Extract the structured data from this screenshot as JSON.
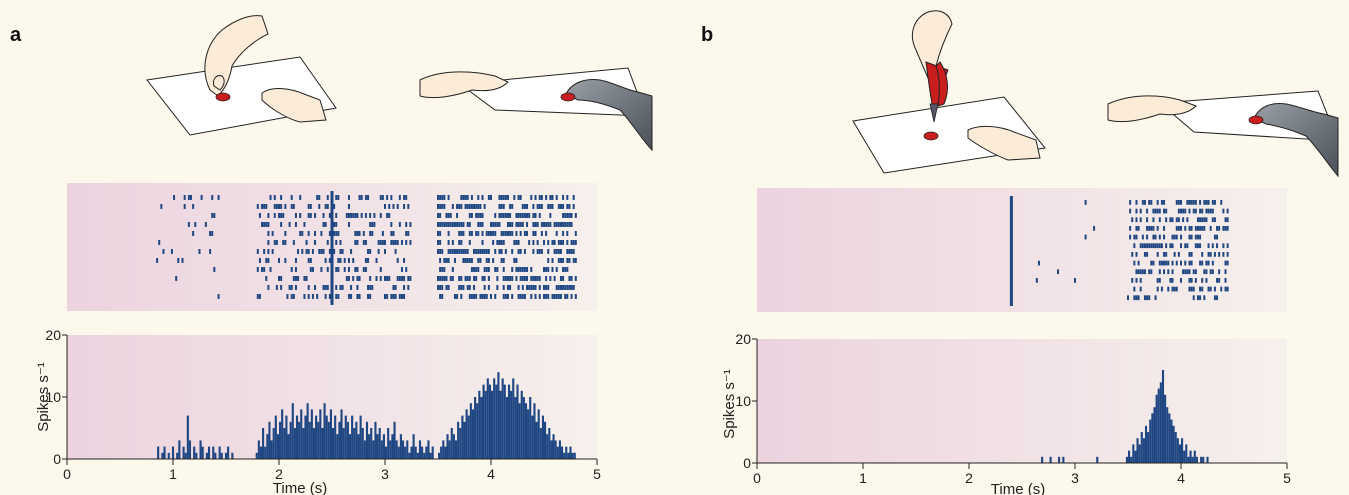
{
  "panels": [
    {
      "letter": "a"
    },
    {
      "letter": "b"
    }
  ],
  "colors": {
    "spike": "#1e4682",
    "raster_bg_left": "#ecd3df",
    "raster_bg_right": "#f6f0ec",
    "page_bg": "#fdf8ec",
    "skin": "#fcebd7",
    "red": "#c81e1e",
    "monkey": "#7a8087"
  },
  "icons": [
    "hand-placing-food-on-board-icon",
    "hand-passing-board-to-monkey-icon",
    "hand-with-pliers-icon",
    "hand-passing-board-to-monkey-icon"
  ],
  "chart_data": [
    {
      "type": "bar",
      "panel": "a",
      "xlabel": "Time (s)",
      "ylabel": "Spikes s⁻¹",
      "xlim": [
        0,
        5
      ],
      "ylim": [
        0,
        20
      ],
      "xticks": [
        "0",
        "1",
        "2",
        "3",
        "4",
        "5"
      ],
      "yticks": [
        "0",
        "10",
        "20"
      ],
      "event_marker_time": 2.5,
      "histogram": {
        "bin_width": 0.02,
        "segments": [
          {
            "start": 0.85,
            "values": [
              2,
              0,
              1,
              2,
              0,
              1,
              0,
              2,
              0,
              1,
              3,
              0,
              2,
              1,
              7,
              3,
              0,
              2,
              1,
              0,
              3,
              2,
              0,
              1,
              2,
              0,
              2,
              1,
              0,
              2,
              1,
              0,
              1,
              2,
              0,
              1
            ]
          },
          {
            "start": 1.78,
            "values": [
              1,
              3,
              2,
              5,
              2,
              4,
              6,
              3,
              5,
              7,
              4,
              6,
              8,
              5,
              7,
              4,
              6,
              9,
              5,
              7,
              6,
              8,
              5,
              7,
              9,
              6,
              8,
              5,
              7,
              6,
              8,
              5,
              9,
              7,
              6,
              8,
              5,
              7,
              4,
              6,
              8,
              5,
              7,
              6,
              4,
              7,
              5,
              6,
              4,
              7,
              5,
              3,
              6,
              4,
              5,
              3,
              6,
              4,
              5,
              3,
              4,
              2,
              5,
              3,
              4,
              6,
              3,
              2,
              4,
              3,
              2,
              3,
              1,
              2,
              4,
              2,
              1,
              3,
              2,
              1,
              2,
              3,
              1,
              2
            ]
          },
          {
            "start": 3.5,
            "values": [
              1,
              2,
              3,
              2,
              4,
              3,
              5,
              4,
              3,
              6,
              5,
              7,
              6,
              8,
              7,
              9,
              8,
              10,
              9,
              11,
              10,
              12,
              11,
              13,
              12,
              11,
              13,
              12,
              14,
              11,
              13,
              12,
              10,
              12,
              11,
              13,
              10,
              12,
              9,
              11,
              10,
              9,
              8,
              10,
              7,
              9,
              6,
              8,
              5,
              7,
              6,
              4,
              5,
              3,
              4,
              3,
              2,
              3,
              2,
              1,
              2,
              1,
              2,
              1,
              1
            ]
          }
        ]
      },
      "raster": {
        "trials": 12,
        "clusters": [
          {
            "t0": 0.85,
            "t1": 1.45,
            "density": 0.08
          },
          {
            "t0": 1.8,
            "t1": 3.25,
            "density": 0.3
          },
          {
            "t0": 3.5,
            "t1": 4.8,
            "density": 0.55
          }
        ]
      }
    },
    {
      "type": "bar",
      "panel": "b",
      "xlabel": "Time (s)",
      "ylabel": "Spikes s⁻¹",
      "xlim": [
        0,
        5
      ],
      "ylim": [
        0,
        20
      ],
      "xticks": [
        "0",
        "1",
        "2",
        "3",
        "4",
        "5"
      ],
      "yticks": [
        "0",
        "10",
        "20"
      ],
      "event_marker_time": 2.4,
      "histogram": {
        "bin_width": 0.02,
        "segments": [
          {
            "start": 2.68,
            "values": [
              1,
              0,
              0,
              0,
              1,
              0,
              0,
              0,
              1,
              0,
              1
            ]
          },
          {
            "start": 3.2,
            "values": [
              1,
              0,
              0,
              0,
              0,
              0,
              0,
              0,
              0,
              0,
              0,
              0,
              0,
              0,
              1,
              2,
              1,
              3,
              2,
              4,
              3,
              5,
              4,
              6,
              5,
              7,
              8,
              9,
              11,
              12,
              13,
              15,
              11,
              9,
              8,
              7,
              6,
              5,
              4,
              3,
              4,
              2,
              3,
              1,
              2,
              1,
              2,
              1,
              0,
              1,
              1,
              0,
              1
            ]
          }
        ]
      },
      "raster": {
        "trials": 12,
        "clusters": [
          {
            "t0": 3.5,
            "t1": 4.45,
            "density": 0.45
          },
          {
            "t0": 2.6,
            "t1": 3.2,
            "density": 0.03
          }
        ]
      }
    }
  ]
}
